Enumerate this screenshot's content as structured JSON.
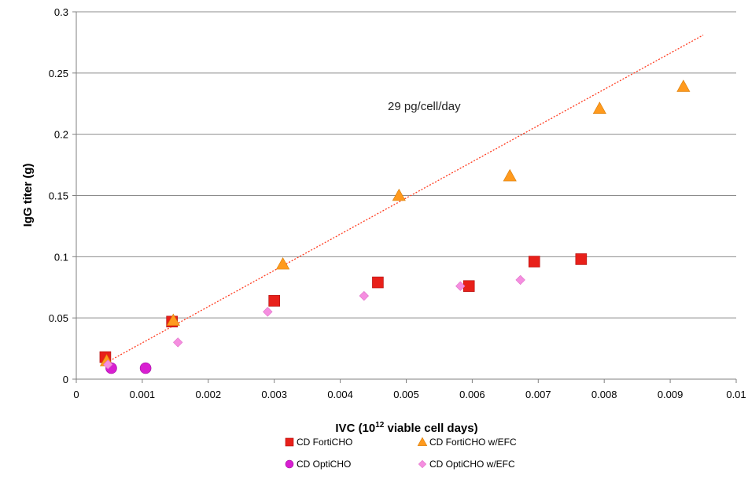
{
  "chart_data": {
    "type": "scatter",
    "title": "",
    "xlabel": {
      "prefix": "IVC (10",
      "sup": "12",
      "suffix": " viable cell days)"
    },
    "ylabel": "IgG titer (g)",
    "xlim": [
      0,
      0.01
    ],
    "ylim": [
      0,
      0.3
    ],
    "x_ticks": [
      0,
      0.001,
      0.002,
      0.003,
      0.004,
      0.005,
      0.006,
      0.007,
      0.008,
      0.009,
      0.01
    ],
    "x_tick_labels": [
      "0",
      "0.001",
      "0.002",
      "0.003",
      "0.004",
      "0.005",
      "0.006",
      "0.007",
      "0.008",
      "0.009",
      "0.01"
    ],
    "y_ticks": [
      0,
      0.05,
      0.1,
      0.15,
      0.2,
      0.25,
      0.3
    ],
    "y_tick_labels": [
      "0",
      "0.05",
      "0.1",
      "0.15",
      "0.2",
      "0.25",
      "0.3"
    ],
    "grid": "horizontal",
    "legend_position": "bottom",
    "annotation": "29 pg/cell/day",
    "trendline": {
      "style": "dotted",
      "color": "#ff3b1f",
      "x": [
        0.00042,
        0.0095
      ],
      "y": [
        0.0125,
        0.281
      ]
    },
    "series": [
      {
        "name": "CD FortiCHO",
        "marker": "square",
        "color": "#e8201a",
        "x": [
          0.00044,
          0.00145,
          0.003,
          0.00457,
          0.00595,
          0.00694,
          0.00765
        ],
        "y": [
          0.018,
          0.047,
          0.064,
          0.079,
          0.076,
          0.096,
          0.098
        ]
      },
      {
        "name": "CD FortiCHO w/EFC",
        "marker": "triangle",
        "color": "#ff9a1e",
        "x": [
          0.00046,
          0.00147,
          0.00313,
          0.00489,
          0.00657,
          0.00793,
          0.0092
        ],
        "y": [
          0.015,
          0.048,
          0.094,
          0.15,
          0.166,
          0.221,
          0.239
        ]
      },
      {
        "name": "CD OptiCHO",
        "marker": "circle",
        "color": "#d81fd1",
        "x": [
          0.00053,
          0.00105
        ],
        "y": [
          0.009,
          0.009
        ]
      },
      {
        "name": "CD OptiCHO w/EFC",
        "marker": "diamond",
        "color": "#f58ee0",
        "x": [
          0.00048,
          0.00154,
          0.0029,
          0.00436,
          0.00582,
          0.00673
        ],
        "y": [
          0.012,
          0.03,
          0.055,
          0.068,
          0.076,
          0.081
        ]
      }
    ]
  }
}
